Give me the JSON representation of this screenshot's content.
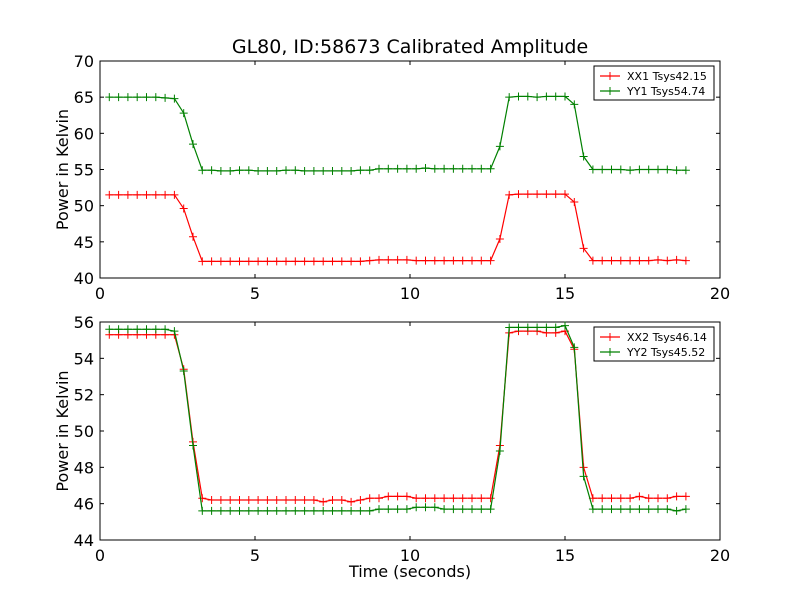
{
  "figure": {
    "title": "GL80, ID:58673 Calibrated Amplitude"
  },
  "chart_data": [
    {
      "type": "line",
      "ylabel": "Power in Kelvin",
      "xlabel": "",
      "xlim": [
        0,
        20
      ],
      "ylim": [
        40,
        70
      ],
      "xticks": [
        0,
        5,
        10,
        15,
        20
      ],
      "yticks": [
        40,
        45,
        50,
        55,
        60,
        65,
        70
      ],
      "grid": false,
      "legend_position": "top-right",
      "series": [
        {
          "name": "XX1 Tsys42.15",
          "color": "#ff0000",
          "x": [
            0.3,
            0.6,
            0.9,
            1.2,
            1.5,
            1.8,
            2.1,
            2.4,
            2.7,
            3.0,
            3.3,
            3.6,
            3.9,
            4.2,
            4.5,
            4.8,
            5.1,
            5.4,
            5.7,
            6.0,
            6.3,
            6.6,
            6.9,
            7.2,
            7.5,
            7.8,
            8.1,
            8.4,
            8.7,
            9.0,
            9.3,
            9.6,
            9.9,
            10.2,
            10.5,
            10.8,
            11.1,
            11.4,
            11.7,
            12.0,
            12.3,
            12.6,
            12.9,
            13.2,
            13.5,
            13.8,
            14.1,
            14.4,
            14.7,
            15.0,
            15.3,
            15.6,
            15.9,
            16.2,
            16.5,
            16.8,
            17.1,
            17.4,
            17.7,
            18.0,
            18.3,
            18.6,
            18.9
          ],
          "y": [
            51.5,
            51.5,
            51.5,
            51.5,
            51.5,
            51.5,
            51.5,
            51.5,
            49.6,
            45.7,
            42.3,
            42.3,
            42.3,
            42.3,
            42.3,
            42.3,
            42.3,
            42.3,
            42.3,
            42.3,
            42.3,
            42.3,
            42.3,
            42.3,
            42.3,
            42.3,
            42.3,
            42.3,
            42.4,
            42.5,
            42.5,
            42.5,
            42.5,
            42.4,
            42.4,
            42.4,
            42.4,
            42.4,
            42.4,
            42.4,
            42.4,
            42.4,
            45.4,
            51.5,
            51.6,
            51.6,
            51.6,
            51.6,
            51.6,
            51.6,
            50.5,
            44.1,
            42.4,
            42.4,
            42.4,
            42.4,
            42.4,
            42.4,
            42.4,
            42.5,
            42.4,
            42.5,
            42.4
          ]
        },
        {
          "name": "YY1 Tsys54.74",
          "color": "#008000",
          "x": [
            0.3,
            0.6,
            0.9,
            1.2,
            1.5,
            1.8,
            2.1,
            2.4,
            2.7,
            3.0,
            3.3,
            3.6,
            3.9,
            4.2,
            4.5,
            4.8,
            5.1,
            5.4,
            5.7,
            6.0,
            6.3,
            6.6,
            6.9,
            7.2,
            7.5,
            7.8,
            8.1,
            8.4,
            8.7,
            9.0,
            9.3,
            9.6,
            9.9,
            10.2,
            10.5,
            10.8,
            11.1,
            11.4,
            11.7,
            12.0,
            12.3,
            12.6,
            12.9,
            13.2,
            13.5,
            13.8,
            14.1,
            14.4,
            14.7,
            15.0,
            15.3,
            15.6,
            15.9,
            16.2,
            16.5,
            16.8,
            17.1,
            17.4,
            17.7,
            18.0,
            18.3,
            18.6,
            18.9
          ],
          "y": [
            65.0,
            65.0,
            65.0,
            65.0,
            65.0,
            65.0,
            64.9,
            64.8,
            62.8,
            58.5,
            54.9,
            54.9,
            54.8,
            54.8,
            54.9,
            54.9,
            54.8,
            54.8,
            54.8,
            54.9,
            54.9,
            54.8,
            54.8,
            54.8,
            54.8,
            54.8,
            54.8,
            54.9,
            54.9,
            55.1,
            55.1,
            55.1,
            55.1,
            55.1,
            55.2,
            55.1,
            55.1,
            55.1,
            55.1,
            55.1,
            55.1,
            55.1,
            58.2,
            65.0,
            65.1,
            65.1,
            65.0,
            65.1,
            65.1,
            65.1,
            64.0,
            56.8,
            55.0,
            55.0,
            55.0,
            55.0,
            54.9,
            55.0,
            55.0,
            55.0,
            55.0,
            54.9,
            54.9
          ]
        }
      ]
    },
    {
      "type": "line",
      "ylabel": "Power in Kelvin",
      "xlabel": "Time (seconds)",
      "xlim": [
        0,
        20
      ],
      "ylim": [
        44,
        56
      ],
      "xticks": [
        0,
        5,
        10,
        15,
        20
      ],
      "yticks": [
        44,
        46,
        48,
        50,
        52,
        54,
        56
      ],
      "grid": false,
      "legend_position": "top-right",
      "series": [
        {
          "name": "XX2 Tsys46.14",
          "color": "#ff0000",
          "x": [
            0.3,
            0.6,
            0.9,
            1.2,
            1.5,
            1.8,
            2.1,
            2.4,
            2.7,
            3.0,
            3.3,
            3.6,
            3.9,
            4.2,
            4.5,
            4.8,
            5.1,
            5.4,
            5.7,
            6.0,
            6.3,
            6.6,
            6.9,
            7.2,
            7.5,
            7.8,
            8.1,
            8.4,
            8.7,
            9.0,
            9.3,
            9.6,
            9.9,
            10.2,
            10.5,
            10.8,
            11.1,
            11.4,
            11.7,
            12.0,
            12.3,
            12.6,
            12.9,
            13.2,
            13.5,
            13.8,
            14.1,
            14.4,
            14.7,
            15.0,
            15.3,
            15.6,
            15.9,
            16.2,
            16.5,
            16.8,
            17.1,
            17.4,
            17.7,
            18.0,
            18.3,
            18.6,
            18.9
          ],
          "y": [
            55.3,
            55.3,
            55.3,
            55.3,
            55.3,
            55.3,
            55.3,
            55.3,
            53.4,
            49.4,
            46.3,
            46.2,
            46.2,
            46.2,
            46.2,
            46.2,
            46.2,
            46.2,
            46.2,
            46.2,
            46.2,
            46.2,
            46.2,
            46.1,
            46.2,
            46.2,
            46.1,
            46.2,
            46.3,
            46.3,
            46.4,
            46.4,
            46.4,
            46.3,
            46.3,
            46.3,
            46.3,
            46.3,
            46.3,
            46.3,
            46.3,
            46.3,
            49.2,
            55.4,
            55.5,
            55.5,
            55.5,
            55.4,
            55.4,
            55.5,
            54.5,
            48.0,
            46.3,
            46.3,
            46.3,
            46.3,
            46.3,
            46.4,
            46.3,
            46.3,
            46.3,
            46.4,
            46.4
          ]
        },
        {
          "name": "YY2 Tsys45.52",
          "color": "#008000",
          "x": [
            0.3,
            0.6,
            0.9,
            1.2,
            1.5,
            1.8,
            2.1,
            2.4,
            2.7,
            3.0,
            3.3,
            3.6,
            3.9,
            4.2,
            4.5,
            4.8,
            5.1,
            5.4,
            5.7,
            6.0,
            6.3,
            6.6,
            6.9,
            7.2,
            7.5,
            7.8,
            8.1,
            8.4,
            8.7,
            9.0,
            9.3,
            9.6,
            9.9,
            10.2,
            10.5,
            10.8,
            11.1,
            11.4,
            11.7,
            12.0,
            12.3,
            12.6,
            12.9,
            13.2,
            13.5,
            13.8,
            14.1,
            14.4,
            14.7,
            15.0,
            15.3,
            15.6,
            15.9,
            16.2,
            16.5,
            16.8,
            17.1,
            17.4,
            17.7,
            18.0,
            18.3,
            18.6,
            18.9
          ],
          "y": [
            55.6,
            55.6,
            55.6,
            55.6,
            55.6,
            55.6,
            55.6,
            55.5,
            53.3,
            49.2,
            45.6,
            45.6,
            45.6,
            45.6,
            45.6,
            45.6,
            45.6,
            45.6,
            45.6,
            45.6,
            45.6,
            45.6,
            45.6,
            45.6,
            45.6,
            45.6,
            45.6,
            45.6,
            45.6,
            45.7,
            45.7,
            45.7,
            45.7,
            45.8,
            45.8,
            45.8,
            45.7,
            45.7,
            45.7,
            45.7,
            45.7,
            45.7,
            48.9,
            55.7,
            55.7,
            55.7,
            55.7,
            55.7,
            55.7,
            55.8,
            54.6,
            47.5,
            45.7,
            45.7,
            45.7,
            45.7,
            45.7,
            45.7,
            45.7,
            45.7,
            45.7,
            45.6,
            45.7
          ]
        }
      ]
    }
  ]
}
